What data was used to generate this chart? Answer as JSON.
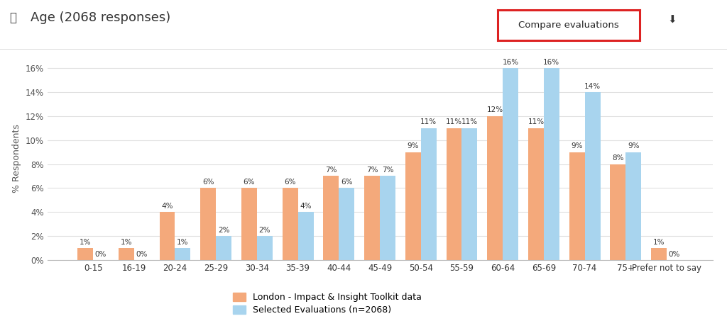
{
  "categories": [
    "0-15",
    "16-19",
    "20-24",
    "25-29",
    "30-34",
    "35-39",
    "40-44",
    "45-49",
    "50-54",
    "55-59",
    "60-64",
    "65-69",
    "70-74",
    "75+",
    "Prefer not to say"
  ],
  "london_values": [
    1,
    1,
    4,
    6,
    6,
    6,
    7,
    7,
    9,
    11,
    12,
    11,
    9,
    8,
    1
  ],
  "selected_values": [
    0,
    0,
    1,
    2,
    2,
    4,
    6,
    7,
    11,
    11,
    16,
    16,
    14,
    9,
    0
  ],
  "london_color": "#F4A97B",
  "selected_color": "#A8D4EE",
  "bar_width": 0.38,
  "title": "Age (2068 responses)",
  "ylabel": "% Respondents",
  "ylim": [
    0,
    17
  ],
  "yticks": [
    0,
    2,
    4,
    6,
    8,
    10,
    12,
    14,
    16
  ],
  "legend_london": "London - Impact & Insight Toolkit data",
  "legend_selected": "Selected Evaluations (n=2068)",
  "bg_color": "#ffffff",
  "grid_color": "#e0e0e0",
  "title_fontsize": 13,
  "axis_fontsize": 9,
  "tick_fontsize": 8.5,
  "bar_label_fontsize": 7.5,
  "compare_button_text": "Compare evaluations",
  "compare_button_color": "#dd2222",
  "separator_color": "#dddddd"
}
